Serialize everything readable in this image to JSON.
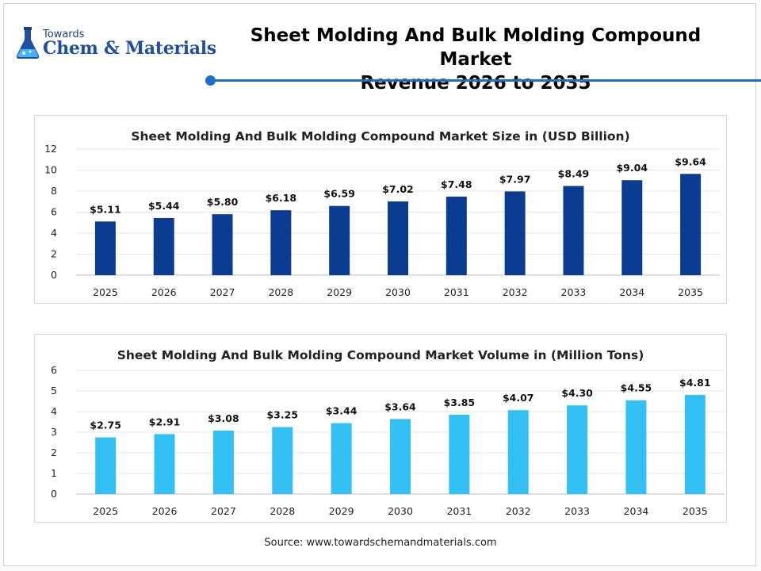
{
  "header": {
    "logo_small": "Towards",
    "logo_big": "Chem & Materials",
    "title_line1": "Sheet Molding And Bulk Molding Compound Market",
    "title_line2": "Revenue 2026 to 2035"
  },
  "footer": {
    "source": "Source: www.towardschemandmaterials.com"
  },
  "chart_data": [
    {
      "type": "bar",
      "title": "Sheet Molding And Bulk Molding Compound Market Size in (USD Billion)",
      "categories": [
        "2025",
        "2026",
        "2027",
        "2028",
        "2029",
        "2030",
        "2031",
        "2032",
        "2033",
        "2034",
        "2035"
      ],
      "values": [
        5.11,
        5.44,
        5.8,
        6.18,
        6.59,
        7.02,
        7.48,
        7.97,
        8.49,
        9.04,
        9.64
      ],
      "labels": [
        "$5.11",
        "$5.44",
        "$5.80",
        "$6.18",
        "$6.59",
        "$7.02",
        "$7.48",
        "$7.97",
        "$8.49",
        "$9.04",
        "$9.64"
      ],
      "ylim": [
        0,
        12
      ],
      "yticks": [
        0,
        2,
        4,
        6,
        8,
        10,
        12
      ],
      "grid": true,
      "color": "#0a3d91"
    },
    {
      "type": "bar",
      "title": "Sheet Molding And Bulk Molding Compound Market Volume in (Million Tons)",
      "categories": [
        "2025",
        "2026",
        "2027",
        "2028",
        "2029",
        "2030",
        "2031",
        "2032",
        "2033",
        "2034",
        "2035"
      ],
      "values": [
        2.75,
        2.91,
        3.08,
        3.25,
        3.44,
        3.64,
        3.85,
        4.07,
        4.3,
        4.55,
        4.81
      ],
      "labels": [
        "$2.75",
        "$2.91",
        "$3.08",
        "$3.25",
        "$3.44",
        "$3.64",
        "$3.85",
        "$4.07",
        "$4.30",
        "$4.55",
        "$4.81"
      ],
      "ylim": [
        0,
        6
      ],
      "yticks": [
        0,
        1,
        2,
        3,
        4,
        5,
        6
      ],
      "grid": true,
      "color": "#33c1f5"
    }
  ]
}
